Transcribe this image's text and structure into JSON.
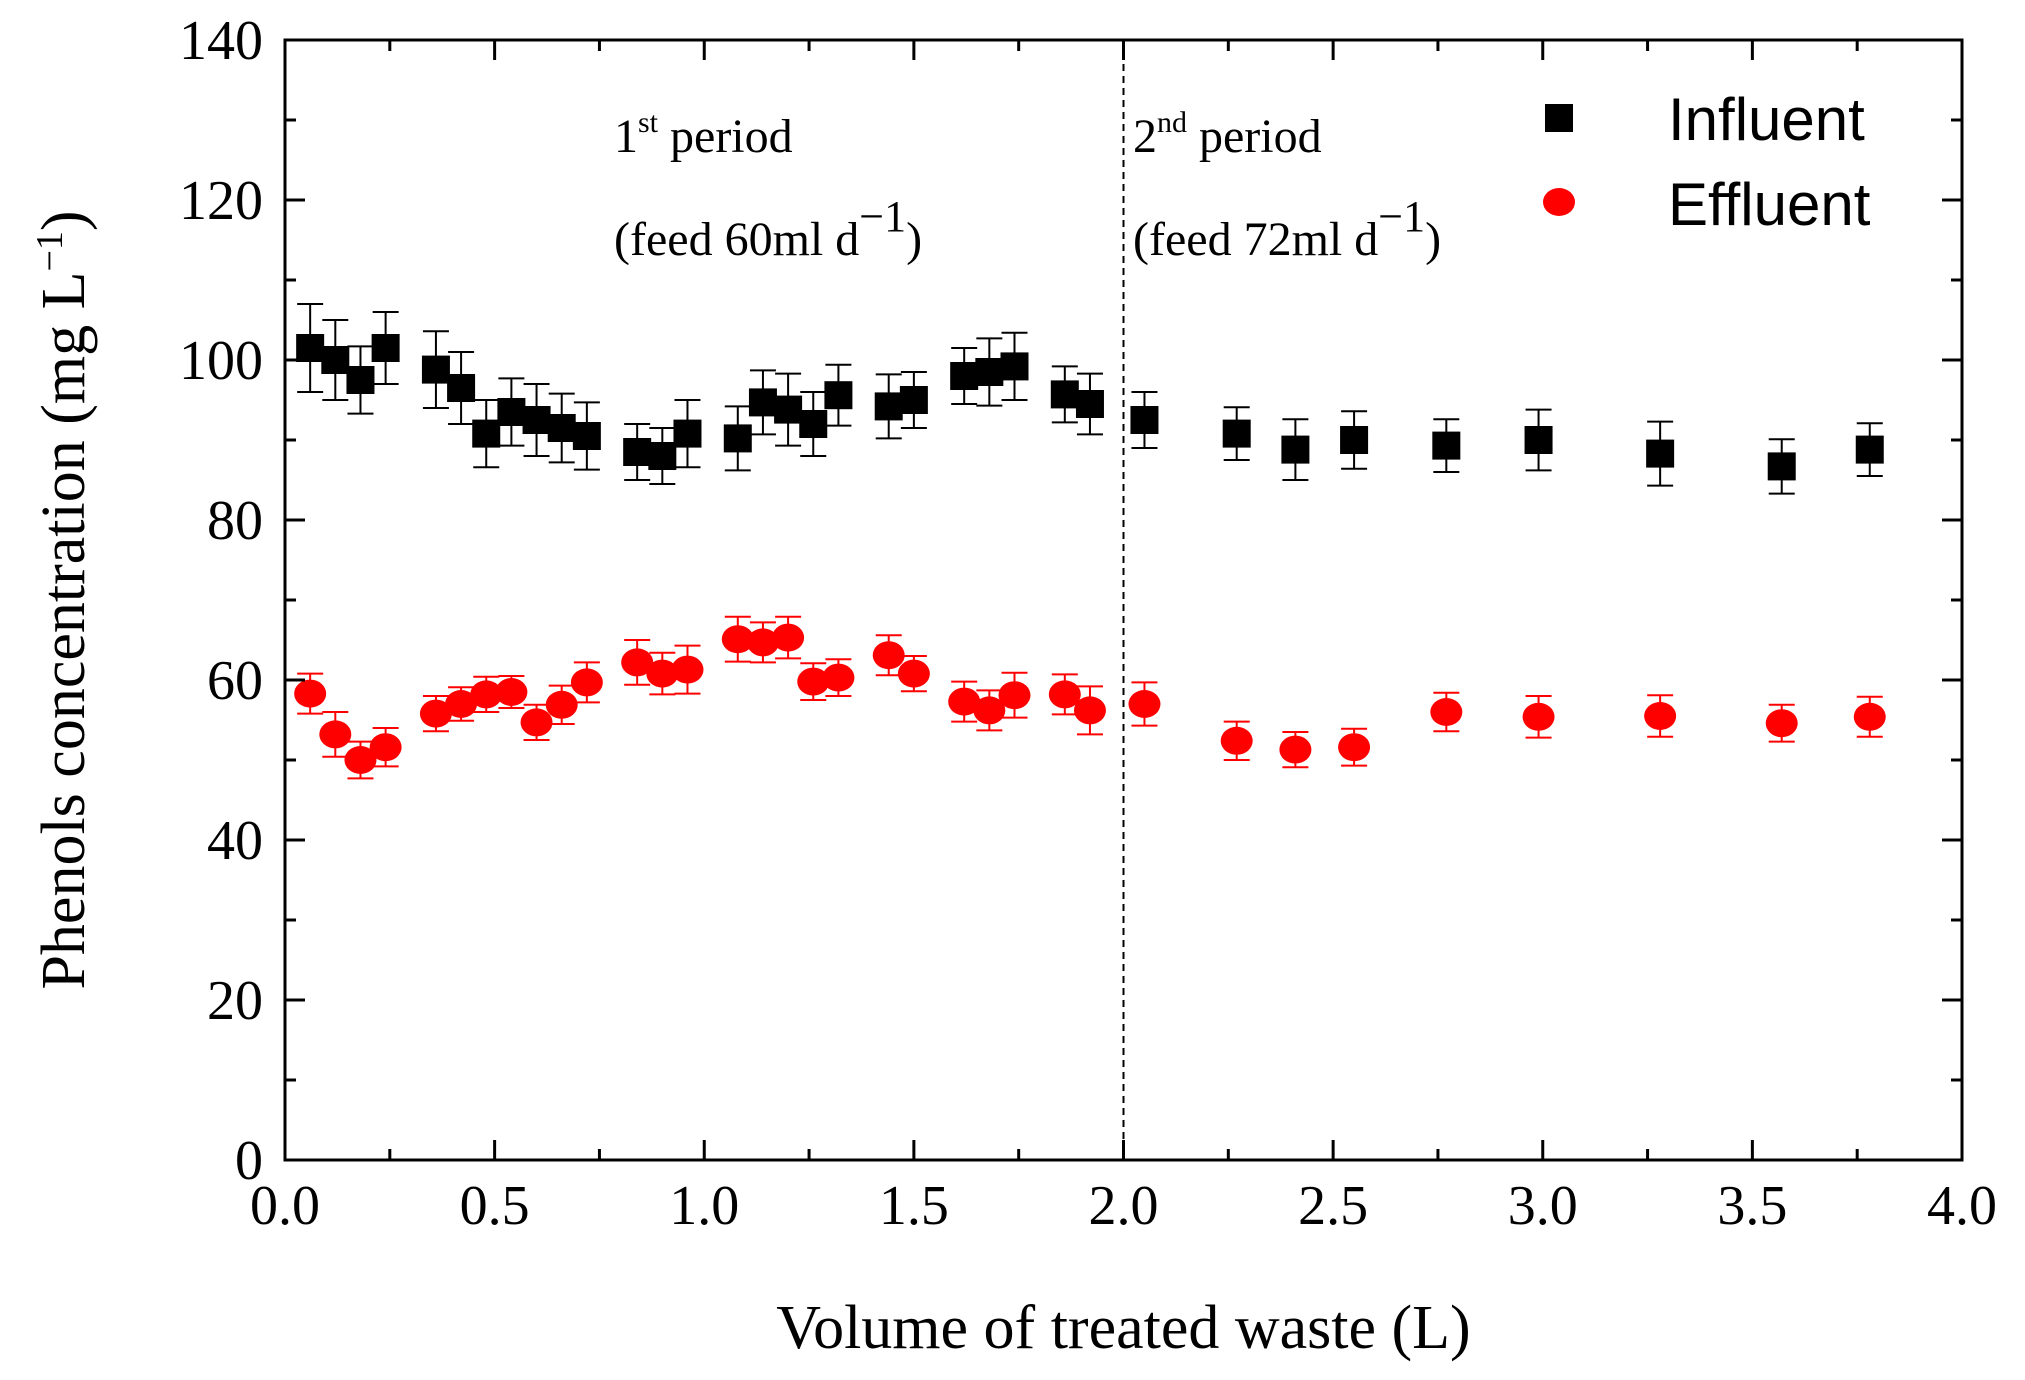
{
  "chart_data": {
    "type": "scatter",
    "title": "",
    "xlabel": "Volume of treated waste (L)",
    "ylabel": {
      "main": "Phenols concentration (mg L",
      "sup": "−1",
      "close": ")"
    },
    "xlim": [
      0,
      4
    ],
    "ylim": [
      0,
      140
    ],
    "x_ticks": [
      "0.0",
      "0.5",
      "1.0",
      "1.5",
      "2.0",
      "2.5",
      "3.0",
      "3.5",
      "4.0"
    ],
    "y_ticks": [
      "0",
      "20",
      "40",
      "60",
      "80",
      "100",
      "120",
      "140"
    ],
    "grid": false,
    "legend_position": "top-right",
    "divider_x": 2.0,
    "annotations": [
      {
        "line1_pre": "1",
        "line1_sup": "st",
        "line1_post": " period",
        "line2_pre": "(feed 60ml d",
        "line2_sup": "−1",
        "line2_post": ")"
      },
      {
        "line1_pre": "2",
        "line1_sup": "nd",
        "line1_post": " period",
        "line2_pre": "(feed 72ml d",
        "line2_sup": "−1",
        "line2_post": ")"
      }
    ],
    "series": [
      {
        "name": "Influent",
        "marker": "square",
        "color": "#000000",
        "x": [
          0.06,
          0.12,
          0.18,
          0.24,
          0.36,
          0.42,
          0.48,
          0.54,
          0.6,
          0.66,
          0.72,
          0.84,
          0.9,
          0.96,
          1.08,
          1.14,
          1.2,
          1.26,
          1.32,
          1.44,
          1.5,
          1.62,
          1.68,
          1.74,
          1.86,
          1.92,
          2.05,
          2.27,
          2.41,
          2.55,
          2.77,
          2.99,
          3.28,
          3.57,
          3.78
        ],
        "y": [
          101.5,
          100,
          97.5,
          101.5,
          98.8,
          96.5,
          90.8,
          93.5,
          92.5,
          91.5,
          90.5,
          88.5,
          88,
          90.8,
          90.2,
          94.7,
          93.8,
          92,
          95.6,
          94.2,
          95,
          98,
          98.5,
          99.2,
          95.7,
          94.5,
          92.5,
          90.8,
          88.8,
          90,
          89.3,
          90,
          88.3,
          86.7,
          88.8
        ],
        "err": [
          5.5,
          5,
          4.2,
          4.5,
          4.8,
          4.5,
          4.2,
          4.2,
          4.5,
          4.3,
          4.2,
          3.5,
          3.5,
          4.2,
          4,
          4,
          4.5,
          4,
          3.8,
          4,
          3.5,
          3.5,
          4.2,
          4.2,
          3.5,
          3.8,
          3.5,
          3.3,
          3.8,
          3.6,
          3.3,
          3.8,
          4,
          3.4,
          3.3
        ]
      },
      {
        "name": "Effluent",
        "marker": "circle",
        "color": "#ff0000",
        "x": [
          0.06,
          0.12,
          0.18,
          0.24,
          0.36,
          0.42,
          0.48,
          0.54,
          0.6,
          0.66,
          0.72,
          0.84,
          0.9,
          0.96,
          1.08,
          1.14,
          1.2,
          1.26,
          1.32,
          1.44,
          1.5,
          1.62,
          1.68,
          1.74,
          1.86,
          1.92,
          2.05,
          2.27,
          2.41,
          2.55,
          2.77,
          2.99,
          3.28,
          3.57,
          3.78
        ],
        "y": [
          58.3,
          53.2,
          50,
          51.6,
          55.8,
          57,
          58.2,
          58.5,
          54.7,
          56.9,
          59.7,
          62.2,
          60.8,
          61.3,
          65.1,
          64.7,
          65.3,
          59.8,
          60.3,
          63.1,
          60.8,
          57.3,
          56.2,
          58.1,
          58.2,
          56.2,
          57,
          52.4,
          51.3,
          51.6,
          56,
          55.4,
          55.5,
          54.6,
          55.4
        ],
        "err": [
          2.5,
          2.8,
          2.3,
          2.4,
          2.2,
          2.1,
          2.2,
          2,
          2.2,
          2.4,
          2.5,
          2.8,
          2.6,
          3,
          2.8,
          2.5,
          2.6,
          2.3,
          2.3,
          2.5,
          2.2,
          2.5,
          2.5,
          2.8,
          2.5,
          3,
          2.7,
          2.4,
          2.2,
          2.3,
          2.4,
          2.6,
          2.6,
          2.3,
          2.5
        ]
      }
    ]
  }
}
